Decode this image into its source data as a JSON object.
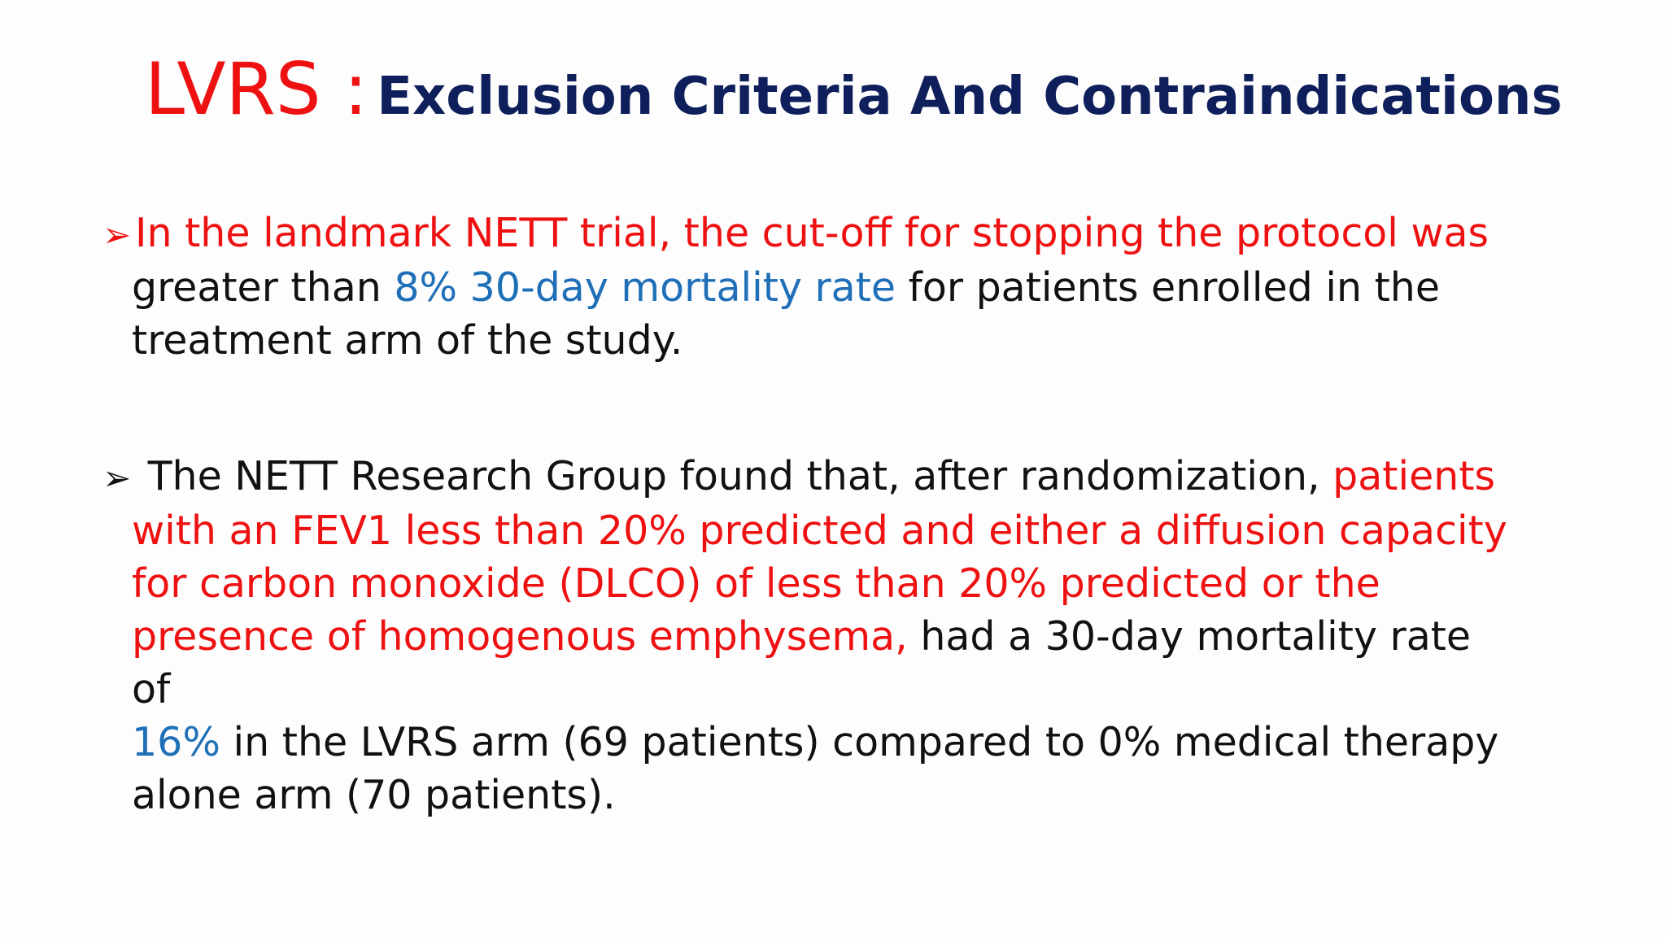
{
  "title": {
    "acronym": "LVRS :",
    "subtitle": "Exclusion Criteria And Contraindications"
  },
  "bullets": [
    {
      "marker": "➢",
      "segments": [
        "In the landmark NETT trial, the cut-off for stopping the protocol was",
        "greater than ",
        "8% 30-day mortality rate",
        " for patients enrolled in the",
        "treatment arm of the study."
      ]
    },
    {
      "marker": "➢",
      "segments": [
        " The NETT Research Group found that, after randomization, ",
        "patients",
        "with an FEV1 less than 20% predicted and either a diffusion capacity",
        "for carbon monoxide (DLCO) of less than 20% predicted or the",
        "presence of homogenous emphysema,",
        " had a 30-day mortality rate of",
        "16%",
        " in the LVRS arm (69 patients) compared to 0% medical therapy",
        "alone arm (70 patients)."
      ]
    }
  ],
  "colors": {
    "accent_red": "#ee1111",
    "title_navy": "#0f1f5c",
    "highlight_blue": "#1f6fb8",
    "body_text": "#111111"
  }
}
